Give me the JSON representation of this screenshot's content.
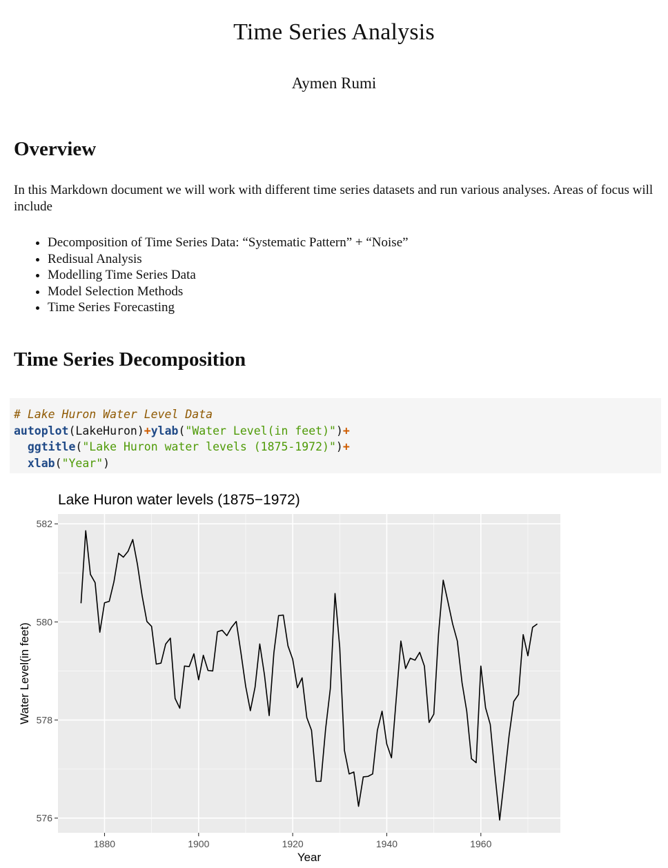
{
  "doc": {
    "title": "Time Series Analysis",
    "author": "Aymen Rumi"
  },
  "overview": {
    "heading": "Overview",
    "paragraph": "In this Markdown document we will work with different time series datasets and run various analyses. Areas of focus will include",
    "bullets": [
      "Decomposition of Time Series Data: “Systematic Pattern” + “Noise”",
      "Redisual Analysis",
      "Modelling Time Series Data",
      "Model Selection Methods",
      "Time Series Forecasting"
    ]
  },
  "decomposition": {
    "heading": "Time Series Decomposition",
    "code": {
      "comment": "# Lake Huron Water Level Data",
      "l2_fn1": "autoplot",
      "l2_arg": "(LakeHuron)",
      "l2_op1": "+",
      "l2_fn2": "ylab",
      "l2_p1": "(",
      "l2_str": "\"Water Level(in feet)\"",
      "l2_p2": ")",
      "l2_op2": "+",
      "l3_fn": "ggtitle",
      "l3_p1": "(",
      "l3_str": "\"Lake Huron water levels (1875-1972)\"",
      "l3_p2": ")",
      "l3_op": "+",
      "l4_fn": "xlab",
      "l4_p1": "(",
      "l4_str": "\"Year\"",
      "l4_p2": ")"
    }
  },
  "chart_data": {
    "type": "line",
    "title": "Lake Huron water levels (1875−1972)",
    "xlabel": "Year",
    "ylabel": "Water Level(in feet)",
    "xlim": [
      1870.1,
      1976.9
    ],
    "ylim": [
      575.7,
      582.2
    ],
    "xticks": [
      1880,
      1900,
      1920,
      1940,
      1960
    ],
    "yticks": [
      576,
      578,
      580,
      582
    ],
    "grid": true,
    "x_start": 1875,
    "values": [
      580.38,
      581.86,
      580.97,
      580.8,
      579.79,
      580.39,
      580.42,
      580.82,
      581.4,
      581.32,
      581.44,
      581.68,
      581.17,
      580.53,
      580.01,
      579.91,
      579.14,
      579.16,
      579.55,
      579.67,
      578.44,
      578.24,
      579.1,
      579.09,
      579.35,
      578.82,
      579.32,
      579.01,
      579.0,
      579.8,
      579.83,
      579.72,
      579.89,
      580.01,
      579.37,
      578.69,
      578.19,
      578.67,
      579.55,
      578.92,
      578.09,
      579.37,
      580.13,
      580.14,
      579.51,
      579.24,
      578.66,
      578.86,
      578.05,
      577.79,
      576.75,
      576.75,
      577.82,
      578.64,
      580.58,
      579.48,
      577.38,
      576.9,
      576.94,
      576.24,
      576.84,
      576.85,
      576.9,
      577.79,
      578.18,
      577.51,
      577.23,
      578.42,
      579.61,
      579.05,
      579.26,
      579.22,
      579.38,
      579.1,
      577.95,
      578.12,
      579.75,
      580.85,
      580.41,
      579.96,
      579.61,
      578.76,
      578.18,
      577.21,
      577.13,
      579.1,
      578.25,
      577.91,
      576.89,
      575.96,
      576.8,
      577.68,
      578.38,
      578.52,
      579.74,
      579.31,
      579.89,
      579.96
    ]
  }
}
